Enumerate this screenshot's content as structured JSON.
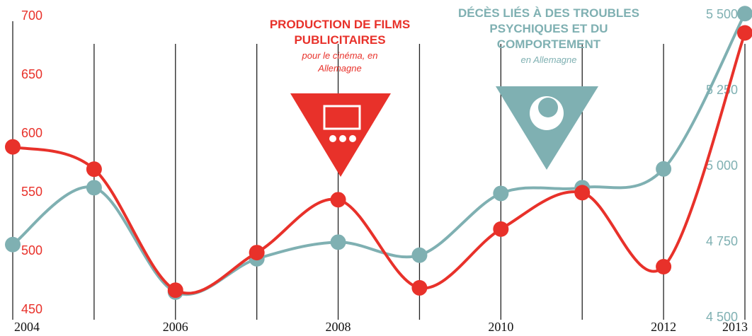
{
  "chart_data": {
    "type": "line",
    "categories": [
      "2004",
      null,
      "2006",
      null,
      "2008",
      null,
      "2010",
      null,
      "2012",
      "2013"
    ],
    "series": [
      {
        "name": "PRODUCTION DE FILMS PUBLICITAIRES",
        "color": "#e8312a",
        "axis": "y",
        "values": [
          589,
          570,
          467,
          499,
          544,
          469,
          519,
          550,
          487,
          686
        ]
      },
      {
        "name": "DÉCÈS LIÉS À DES TROUBLES PSYCHIQUES ET DU COMPORTEMENT",
        "color": "#7fb0b2",
        "axis": "y2",
        "values": [
          4742,
          4930,
          4585,
          4695,
          4750,
          4707,
          4911,
          4930,
          4992,
          5505
        ]
      }
    ],
    "annotations": [
      "pour le cinéma, en Allemagne",
      "en Allemagne"
    ],
    "ylim": [
      428,
      714
    ],
    "yticks": [
      450,
      500,
      550,
      600,
      650,
      700
    ],
    "y2lim": [
      4440,
      5550
    ],
    "y2ticks": [
      {
        "value": 4500,
        "label": "4 500"
      },
      {
        "value": 4750,
        "label": "4 750"
      },
      {
        "value": 5000,
        "label": "5 000"
      },
      {
        "value": 5250,
        "label": "5 250"
      },
      {
        "value": 5500,
        "label": "5 500"
      }
    ]
  }
}
